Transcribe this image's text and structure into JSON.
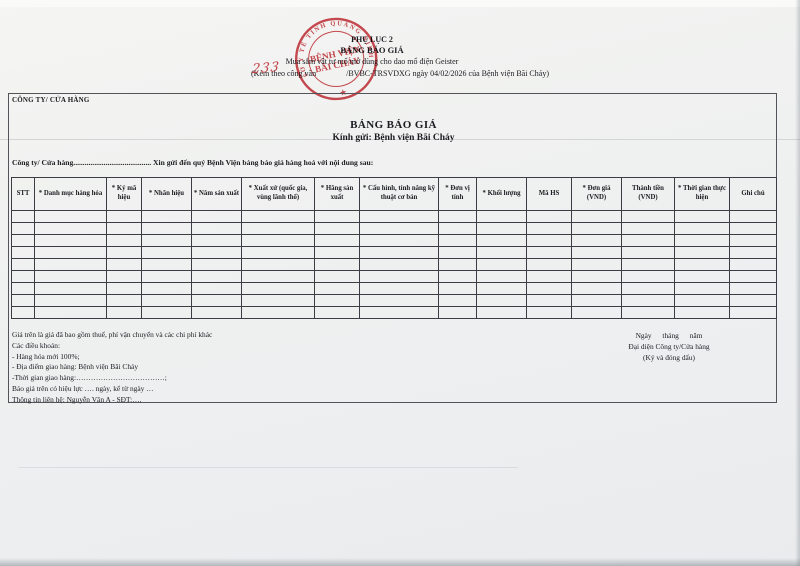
{
  "page": {
    "header": {
      "appendix": "PHỤ LỤC 2",
      "title": "BẢNG BÁO GIÁ",
      "subtitle": "Mua sắm vật tư mổ mở dùng cho dao mổ điện Geister",
      "ref_prefix": "(Kèm theo công văn",
      "ref_number_handwritten": "233",
      "ref_suffix": "/BVBC-TRSVDXG ngày 04/02/2026 của Bệnh viện Bãi Cháy)"
    },
    "stamp": {
      "ring_text": "SỞ Y TẾ TỈNH QUẢNG NINH",
      "center_line1": "BỆNH VIỆN",
      "center_line2": "BÃI CHÁY",
      "star": "★",
      "color": "#c3242b"
    },
    "form": {
      "company_label": "CÔNG TY/ CỬA HÀNG",
      "title": "BẢNG BÁO GIÁ",
      "recipient": "Kính gửi: Bệnh viện Bãi Cháy",
      "intro": "Công ty/ Cửa hàng......................................... Xin gửi đến quý Bệnh Viện bảng báo giá hàng hoá với nội dung sau:"
    },
    "table": {
      "columns": [
        {
          "label": "STT"
        },
        {
          "label": "* Danh mục hàng hóa"
        },
        {
          "label": "* Ký mã hiệu"
        },
        {
          "label": "* Nhãn hiệu"
        },
        {
          "label": "* Năm sản xuất"
        },
        {
          "label": "* Xuất xứ (quốc gia, vùng lãnh thổ)"
        },
        {
          "label": "* Hãng sản xuất"
        },
        {
          "label": "* Cấu hình, tính năng kỹ thuật cơ bản"
        },
        {
          "label": "* Đơn vị tính"
        },
        {
          "label": "* Khối lượng"
        },
        {
          "label": "Mã HS"
        },
        {
          "label": "* Đơn giá (VND)"
        },
        {
          "label": "Thành tiền (VND)"
        },
        {
          "label": "* Thời gian thực hiện"
        },
        {
          "label": "Ghi chú"
        }
      ],
      "empty_row_count": 9
    },
    "footer": {
      "notes": [
        "Giá trên là giá đã bao gồm thuế, phí vận chuyển và các chi phí khác",
        "Các điều khoản:",
        "- Hàng hóa mới 100%;",
        "- Địa điểm giao hàng: Bệnh viện Bãi Cháy",
        "-Thời gian giao hàng:………………………………;",
        "Báo giá trên có hiệu lực …. ngày, kể từ ngày …",
        "Thông tin liên hệ: Nguyễn Văn A - SĐT:…."
      ],
      "sign_date": "Ngày tháng năm",
      "sign_title": "Đại diện Công ty/Cửa hàng",
      "sign_note": "(Ký và đóng dấu)"
    }
  }
}
